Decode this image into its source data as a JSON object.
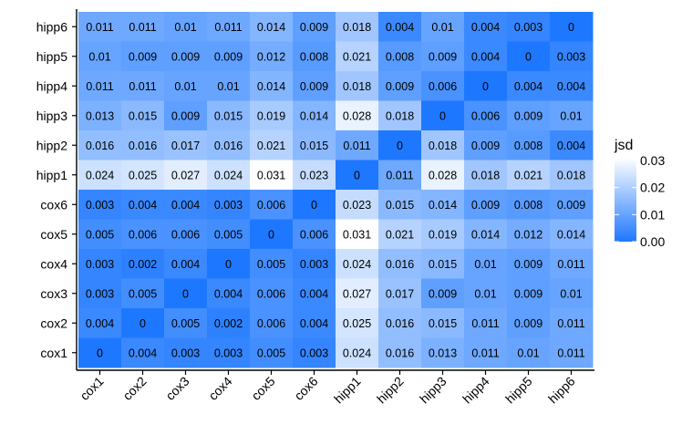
{
  "chart_data": {
    "type": "heatmap",
    "title": "",
    "xlabel": "",
    "ylabel": "",
    "x_categories": [
      "cox1",
      "cox2",
      "cox3",
      "cox4",
      "cox5",
      "cox6",
      "hipp1",
      "hipp2",
      "hipp3",
      "hipp4",
      "hipp5",
      "hipp6"
    ],
    "y_categories": [
      "cox1",
      "cox2",
      "cox3",
      "cox4",
      "cox5",
      "cox6",
      "hipp1",
      "hipp2",
      "hipp3",
      "hipp4",
      "hipp5",
      "hipp6"
    ],
    "rows": [
      {
        "label": "hipp6",
        "cells": [
          "0.011",
          "0.011",
          "0.01",
          "0.011",
          "0.014",
          "0.009",
          "0.018",
          "0.004",
          "0.01",
          "0.004",
          "0.003",
          "0"
        ]
      },
      {
        "label": "hipp5",
        "cells": [
          "0.01",
          "0.009",
          "0.009",
          "0.009",
          "0.012",
          "0.008",
          "0.021",
          "0.008",
          "0.009",
          "0.004",
          "0",
          "0.003"
        ]
      },
      {
        "label": "hipp4",
        "cells": [
          "0.011",
          "0.011",
          "0.01",
          "0.01",
          "0.014",
          "0.009",
          "0.018",
          "0.009",
          "0.006",
          "0",
          "0.004",
          "0.004"
        ]
      },
      {
        "label": "hipp3",
        "cells": [
          "0.013",
          "0.015",
          "0.009",
          "0.015",
          "0.019",
          "0.014",
          "0.028",
          "0.018",
          "0",
          "0.006",
          "0.009",
          "0.01"
        ]
      },
      {
        "label": "hipp2",
        "cells": [
          "0.016",
          "0.016",
          "0.017",
          "0.016",
          "0.021",
          "0.015",
          "0.011",
          "0",
          "0.018",
          "0.009",
          "0.008",
          "0.004"
        ]
      },
      {
        "label": "hipp1",
        "cells": [
          "0.024",
          "0.025",
          "0.027",
          "0.024",
          "0.031",
          "0.023",
          "0",
          "0.011",
          "0.028",
          "0.018",
          "0.021",
          "0.018"
        ]
      },
      {
        "label": "cox6",
        "cells": [
          "0.003",
          "0.004",
          "0.004",
          "0.003",
          "0.006",
          "0",
          "0.023",
          "0.015",
          "0.014",
          "0.009",
          "0.008",
          "0.009"
        ]
      },
      {
        "label": "cox5",
        "cells": [
          "0.005",
          "0.006",
          "0.006",
          "0.005",
          "0",
          "0.006",
          "0.031",
          "0.021",
          "0.019",
          "0.014",
          "0.012",
          "0.014"
        ]
      },
      {
        "label": "cox4",
        "cells": [
          "0.003",
          "0.002",
          "0.004",
          "0",
          "0.005",
          "0.003",
          "0.024",
          "0.016",
          "0.015",
          "0.01",
          "0.009",
          "0.011"
        ]
      },
      {
        "label": "cox3",
        "cells": [
          "0.003",
          "0.005",
          "0",
          "0.004",
          "0.006",
          "0.004",
          "0.027",
          "0.017",
          "0.009",
          "0.01",
          "0.009",
          "0.01"
        ]
      },
      {
        "label": "cox2",
        "cells": [
          "0.004",
          "0",
          "0.005",
          "0.002",
          "0.006",
          "0.004",
          "0.025",
          "0.016",
          "0.015",
          "0.011",
          "0.009",
          "0.011"
        ]
      },
      {
        "label": "cox1",
        "cells": [
          "0",
          "0.004",
          "0.003",
          "0.003",
          "0.005",
          "0.003",
          "0.024",
          "0.016",
          "0.013",
          "0.011",
          "0.01",
          "0.011"
        ]
      }
    ],
    "legend": {
      "title": "jsd",
      "ticks": [
        "0.03",
        "0.02",
        "0.01",
        "0.00"
      ],
      "tick_values": [
        0.03,
        0.02,
        0.01,
        0.0
      ],
      "range": [
        0,
        0.031
      ],
      "placement": "right"
    },
    "colors": {
      "low": "#1e78ff",
      "high": "#ffffff"
    },
    "grid": false
  }
}
